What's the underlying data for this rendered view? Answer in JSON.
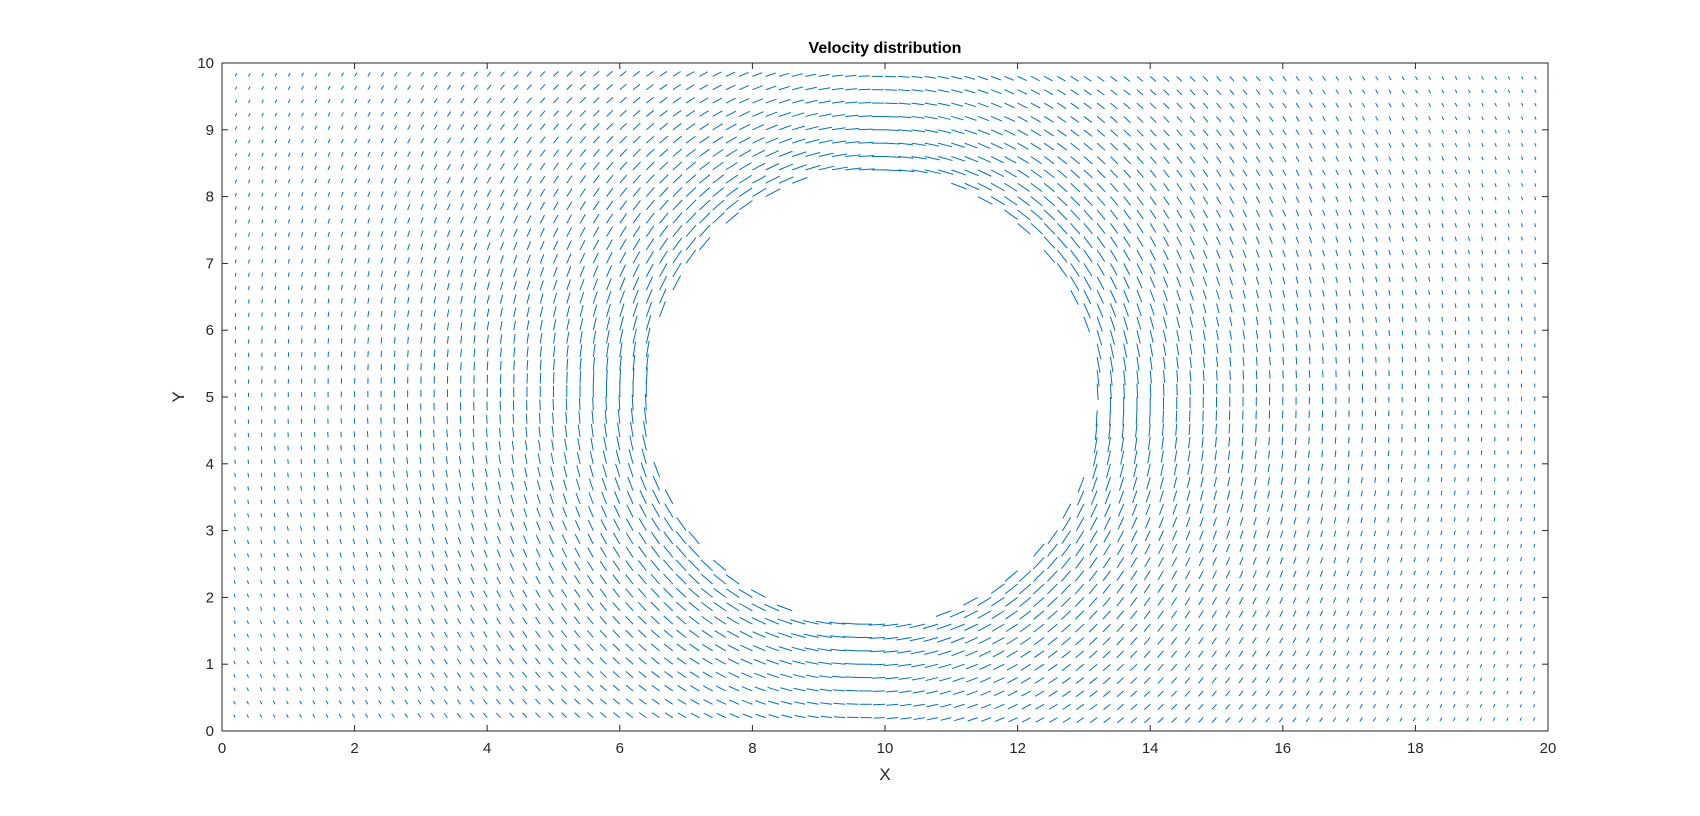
{
  "chart_data": {
    "type": "quiver",
    "title": "Velocity distribution",
    "xlabel": "X",
    "ylabel": "Y",
    "xlim": [
      0,
      20
    ],
    "ylim": [
      0,
      10
    ],
    "xticks": [
      "0",
      "2",
      "4",
      "6",
      "8",
      "10",
      "12",
      "14",
      "16",
      "18",
      "20"
    ],
    "yticks": [
      "0",
      "1",
      "2",
      "3",
      "4",
      "5",
      "6",
      "7",
      "8",
      "9",
      "10"
    ],
    "grid": false,
    "box": true,
    "field": {
      "description_of_flow": "uniform flow past a circular obstacle",
      "x_range": [
        0.2,
        19.8
      ],
      "y_range": [
        0.2,
        9.8
      ],
      "grid_spacing": 0.2,
      "obstacle_center": [
        9.8,
        5.0
      ],
      "obstacle_radius": 3.4,
      "freestream_u": 1.0
    },
    "colors": {
      "arrow": "#0072BD",
      "axes": "#262626"
    }
  }
}
